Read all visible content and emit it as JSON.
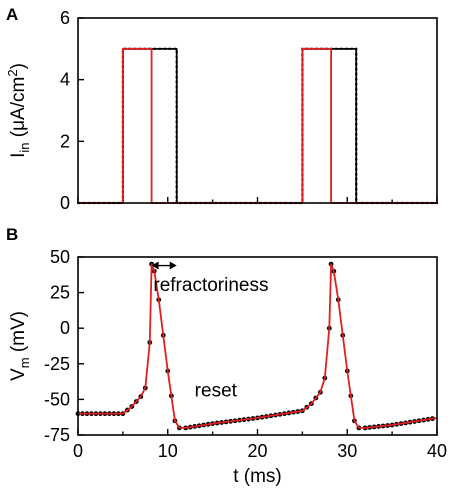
{
  "chart_data": [
    {
      "panel": "A",
      "type": "line",
      "ylabel": {
        "main": "I",
        "sub": "in",
        "rest": " (μA/cm",
        "sup": "2",
        "end": ")"
      },
      "xlim": [
        0,
        40
      ],
      "ylim": [
        0,
        6
      ],
      "yticks": [
        0,
        2,
        4,
        6
      ],
      "series": [
        {
          "style": "solid",
          "color": "#000000",
          "x": [
            0,
            5,
            5,
            11,
            11,
            25,
            25,
            31,
            31,
            40
          ],
          "y": [
            0,
            0,
            5,
            5,
            0,
            0,
            5,
            5,
            0,
            0
          ]
        },
        {
          "style": "dotted",
          "color": "#000000",
          "x": [
            0,
            5,
            5,
            11,
            11,
            25,
            25,
            31,
            31,
            40
          ],
          "y": [
            0,
            0,
            5,
            5,
            0,
            0,
            5,
            5,
            0,
            0
          ]
        },
        {
          "style": "solid",
          "color": "#e02020",
          "x": [
            0,
            5,
            5,
            8.2,
            8.2,
            25,
            25,
            28.2,
            28.2,
            40
          ],
          "y": [
            0,
            0,
            5,
            5,
            0,
            0,
            5,
            5,
            0,
            0
          ]
        }
      ]
    },
    {
      "panel": "B",
      "type": "line",
      "xlabel": "t (ms)",
      "ylabel": {
        "main": "V",
        "sub": "m",
        "rest": " (mV)",
        "sup": "",
        "end": ""
      },
      "xlim": [
        0,
        40
      ],
      "ylim": [
        -75,
        50
      ],
      "xticks": [
        0,
        10,
        20,
        30,
        40
      ],
      "yticks": [
        50,
        25,
        0,
        -25,
        -50,
        -75
      ],
      "series": [
        {
          "style": "dotted-markers",
          "color": "#000000",
          "x": [
            0,
            3,
            5,
            6,
            7,
            7.5,
            8,
            8.2,
            8.5,
            9,
            10,
            10.8,
            11.3,
            12,
            15,
            20,
            25,
            26,
            27,
            27.5,
            28,
            28.2,
            28.5,
            29,
            30,
            30.8,
            31.3,
            32,
            35,
            40
          ],
          "y": [
            -60,
            -60,
            -60,
            -55,
            -48,
            -42,
            -10,
            45,
            40,
            20,
            -30,
            -65,
            -70,
            -70,
            -67,
            -63,
            -58,
            -53,
            -45,
            -35,
            0,
            45,
            40,
            20,
            -30,
            -65,
            -70,
            -70,
            -68,
            -63
          ]
        },
        {
          "style": "solid",
          "color": "#e02020",
          "x": [
            0,
            3,
            5,
            6,
            7,
            7.5,
            8,
            8.2,
            8.5,
            9,
            10,
            10.8,
            11.3,
            12,
            15,
            20,
            25,
            26,
            27,
            27.5,
            28,
            28.2,
            28.5,
            29,
            30,
            30.8,
            31.3,
            32,
            35,
            40
          ],
          "y": [
            -60,
            -60,
            -60,
            -55,
            -48,
            -42,
            -10,
            45,
            40,
            20,
            -30,
            -65,
            -70,
            -70,
            -67,
            -63,
            -58,
            -53,
            -45,
            -35,
            0,
            45,
            40,
            20,
            -30,
            -65,
            -70,
            -70,
            -68,
            -63
          ]
        }
      ],
      "annotations": [
        {
          "text": "refractoriness",
          "x": 8.4,
          "y": 26
        },
        {
          "text": "reset",
          "x": 13,
          "y": -48
        }
      ],
      "arrow": {
        "x1": 8.2,
        "x2": 11,
        "y": 44
      }
    }
  ]
}
